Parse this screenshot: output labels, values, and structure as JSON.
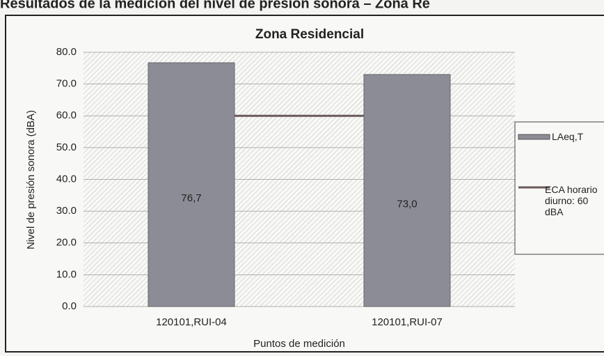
{
  "heading": "Resultados de la medición del nivel de presión sonora – Zona Re",
  "chart_data": {
    "type": "bar",
    "title": "Zona Residencial",
    "categories": [
      "120101,RUI-04",
      "120101,RUI-07"
    ],
    "series": [
      {
        "name": "LAeq,T",
        "color": "#8c8c96",
        "values": [
          76.7,
          73.0
        ],
        "value_labels": [
          "76,7",
          "73,0"
        ]
      },
      {
        "name": "ECA horario diurno: 60 dBA",
        "color": "#6a5a5a",
        "type": "line",
        "values": [
          60,
          60
        ]
      }
    ],
    "ylim": [
      0,
      80
    ],
    "yticks": [
      {
        "value": 0,
        "label": "0.0"
      },
      {
        "value": 10,
        "label": "10.0"
      },
      {
        "value": 20,
        "label": "20.0"
      },
      {
        "value": 30,
        "label": "30.0"
      },
      {
        "value": 40,
        "label": "40.0"
      },
      {
        "value": 50,
        "label": "50.0"
      },
      {
        "value": 60,
        "label": "60.0"
      },
      {
        "value": 70,
        "label": "70.0"
      },
      {
        "value": 80,
        "label": "80.0"
      }
    ],
    "ylabel": "Nivel de presión sonora (dBA)",
    "xlabel": "Puntos de medición",
    "grid": true,
    "legend": "right"
  }
}
